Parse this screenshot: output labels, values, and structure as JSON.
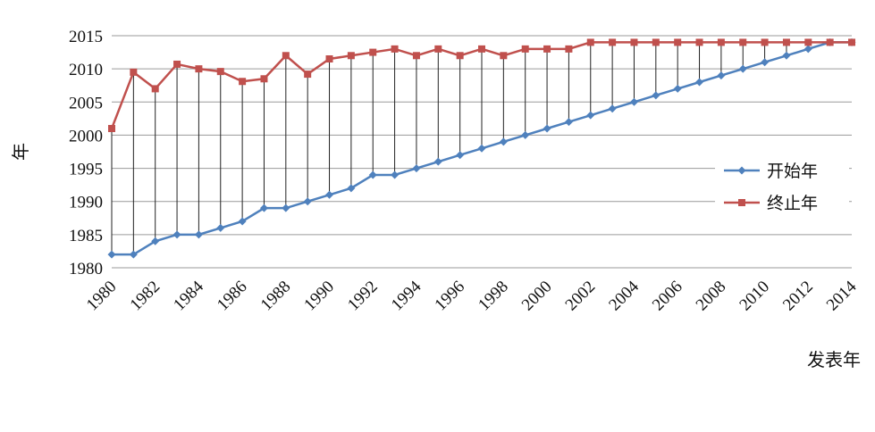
{
  "chart_data": {
    "type": "line",
    "xlabel": "发表年",
    "ylabel": "年",
    "ylim": [
      1980,
      2015
    ],
    "yticks": [
      1980,
      1985,
      1990,
      1995,
      2000,
      2005,
      2010,
      2015
    ],
    "x": [
      1980,
      1981,
      1982,
      1983,
      1984,
      1985,
      1986,
      1987,
      1988,
      1989,
      1990,
      1991,
      1992,
      1993,
      1994,
      1995,
      1996,
      1997,
      1998,
      1999,
      2000,
      2001,
      2002,
      2003,
      2004,
      2005,
      2006,
      2007,
      2008,
      2009,
      2010,
      2011,
      2012,
      2013,
      2014
    ],
    "xtick_labels": [
      1980,
      1982,
      1984,
      1986,
      1988,
      1990,
      1992,
      1994,
      1996,
      1998,
      2000,
      2002,
      2004,
      2006,
      2008,
      2010,
      2012,
      2014
    ],
    "grid": "horizontal",
    "legend_position": "right",
    "drop_lines": true,
    "series": [
      {
        "name": "开始年",
        "color": "#4f81bd",
        "marker": "diamond",
        "values": [
          1982,
          1982,
          1984,
          1985,
          1985,
          1986,
          1987,
          1989,
          1989,
          1990,
          1991,
          1992,
          1994,
          1994,
          1995,
          1996,
          1997,
          1998,
          1999,
          2000,
          2001,
          2002,
          2003,
          2004,
          2005,
          2006,
          2007,
          2008,
          2009,
          2010,
          2011,
          2012,
          2013,
          2014,
          2014
        ]
      },
      {
        "name": "终止年",
        "color": "#c0504d",
        "marker": "square",
        "values": [
          2001,
          2009.5,
          2007,
          2010.7,
          2010,
          2009.6,
          2008.1,
          2008.5,
          2012,
          2009.2,
          2011.5,
          2012,
          2012.5,
          2013,
          2012,
          2013,
          2012,
          2013,
          2012,
          2013,
          2013,
          2013,
          2014,
          2014,
          2014,
          2014,
          2014,
          2014,
          2014,
          2014,
          2014,
          2014,
          2014,
          2014,
          2014
        ]
      }
    ]
  }
}
